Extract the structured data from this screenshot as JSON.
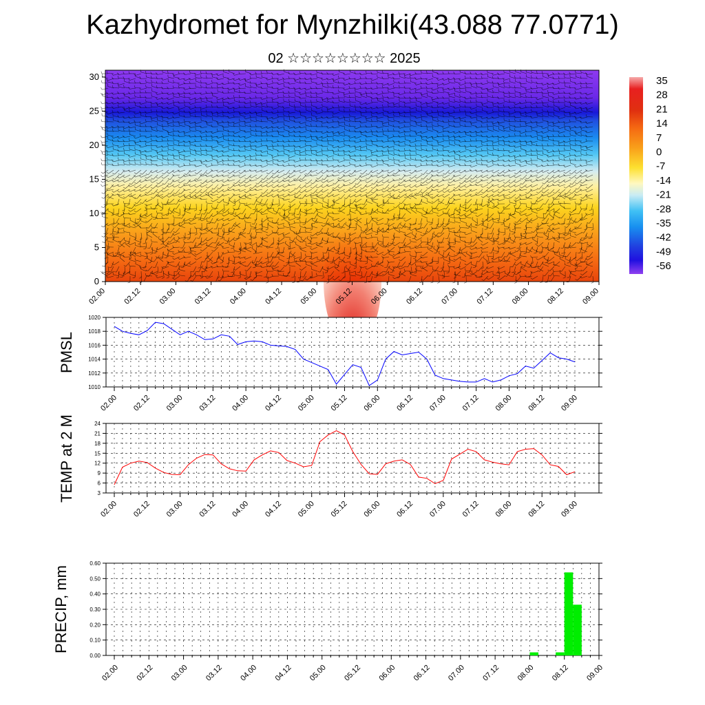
{
  "title": "Kazhydromet for Mynzhilki(43.088 77.0771)",
  "subtitle": "02 ☆☆☆☆☆☆☆☆ 2025",
  "time_ticks": [
    "02.00",
    "02.12",
    "03.00",
    "03.12",
    "04.00",
    "04.12",
    "05.00",
    "05.12",
    "06.00",
    "06.12",
    "07.00",
    "07.12",
    "08.00",
    "08.12",
    "09.00"
  ],
  "colors": {
    "pmsl_line": "#0000ff",
    "temp_line": "#ff0000",
    "precip_bar": "#00ee00",
    "grid": "#000000"
  },
  "chart_data": [
    {
      "type": "heatmap",
      "name": "vertical-temperature-wind-section",
      "y_ticks": [
        "0",
        "5",
        "10",
        "15",
        "20",
        "25",
        "30"
      ],
      "ylim": [
        0,
        31
      ],
      "x_range_hours": [
        0,
        168
      ],
      "colorbar_labels": [
        "35",
        "28",
        "21",
        "14",
        "7",
        "0",
        "-7",
        "-14",
        "-21",
        "-28",
        "-35",
        "-42",
        "-49",
        "-56"
      ],
      "colorbar_range": [
        -63,
        42
      ],
      "wind_barbs": true
    },
    {
      "type": "line",
      "ylabel": "PMSL",
      "y_ticks": [
        "1020",
        "1018",
        "1016",
        "1014",
        "1012",
        "1010"
      ],
      "ylim": [
        1010,
        1020
      ],
      "x_hours": [
        0,
        3,
        6,
        9,
        12,
        15,
        18,
        21,
        24,
        27,
        30,
        33,
        36,
        39,
        42,
        45,
        48,
        51,
        54,
        57,
        60,
        63,
        66,
        69,
        72,
        75,
        78,
        81,
        84,
        87,
        90,
        93,
        96,
        99,
        102,
        105,
        108,
        111,
        114,
        117,
        120,
        123,
        126,
        129,
        132,
        135,
        138,
        141,
        144,
        147,
        150,
        153,
        156,
        159,
        162,
        165,
        168
      ],
      "values": [
        1018.7,
        1018.0,
        1017.7,
        1017.5,
        1018.1,
        1019.3,
        1019.1,
        1018.3,
        1017.5,
        1018.0,
        1017.5,
        1016.8,
        1016.9,
        1017.5,
        1017.3,
        1016.1,
        1016.5,
        1016.6,
        1016.5,
        1016.0,
        1015.9,
        1015.8,
        1015.4,
        1014.0,
        1013.5,
        1013.0,
        1012.5,
        1010.4,
        1011.8,
        1013.2,
        1012.8,
        1010.2,
        1011.0,
        1014.0,
        1015.1,
        1014.6,
        1014.8,
        1015.0,
        1014.0,
        1011.7,
        1011.2,
        1011.0,
        1010.8,
        1010.7,
        1010.7,
        1011.2,
        1010.7,
        1011.0,
        1011.6,
        1011.9,
        1013.0,
        1012.7,
        1013.8,
        1014.9,
        1014.2,
        1014.0,
        1013.6
      ]
    },
    {
      "type": "line",
      "ylabel": "TEMP at 2 M",
      "y_ticks": [
        "24",
        "21",
        "18",
        "15",
        "12",
        "9",
        "6",
        "3"
      ],
      "ylim": [
        3,
        24
      ],
      "x_hours": [
        0,
        3,
        6,
        9,
        12,
        15,
        18,
        21,
        24,
        27,
        30,
        33,
        36,
        39,
        42,
        45,
        48,
        51,
        54,
        57,
        60,
        63,
        66,
        69,
        72,
        75,
        78,
        81,
        84,
        87,
        90,
        93,
        96,
        99,
        102,
        105,
        108,
        111,
        114,
        117,
        120,
        123,
        126,
        129,
        132,
        135,
        138,
        141,
        144,
        147,
        150,
        153,
        156,
        159,
        162,
        165,
        168
      ],
      "values": [
        5.5,
        10.8,
        12.0,
        12.6,
        12.2,
        10.5,
        9.2,
        8.6,
        8.5,
        11.5,
        13.5,
        14.6,
        14.5,
        11.8,
        10.3,
        9.7,
        9.6,
        13.0,
        14.5,
        15.7,
        15.2,
        12.8,
        12.0,
        10.9,
        11.3,
        18.5,
        20.5,
        21.8,
        20.5,
        15.5,
        11.6,
        8.8,
        8.6,
        11.8,
        12.6,
        13.0,
        11.6,
        7.8,
        7.4,
        5.8,
        6.8,
        13.2,
        14.7,
        16.2,
        15.5,
        13.0,
        12.3,
        11.8,
        11.5,
        15.5,
        16.2,
        16.4,
        14.5,
        11.5,
        11.0,
        8.5,
        9.4
      ]
    },
    {
      "type": "bar",
      "ylabel": "PRECIP, mm",
      "y_ticks": [
        "0.60",
        "0.50",
        "0.40",
        "0.30",
        "0.20",
        "0.10",
        "0.00"
      ],
      "ylim": [
        0,
        0.6
      ],
      "bars": [
        {
          "x_start_hours": 144,
          "x_end_hours": 147,
          "value": 0.02
        },
        {
          "x_start_hours": 153,
          "x_end_hours": 156,
          "value": 0.02
        },
        {
          "x_start_hours": 156,
          "x_end_hours": 159,
          "value": 0.54
        },
        {
          "x_start_hours": 159,
          "x_end_hours": 162,
          "value": 0.33
        }
      ]
    }
  ]
}
